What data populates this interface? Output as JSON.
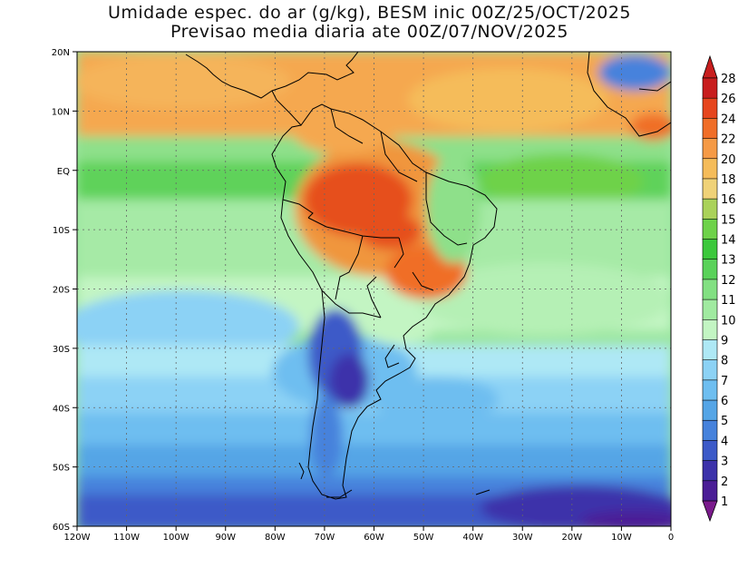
{
  "title": {
    "line1": "Umidade espec. do ar (g/kg), BESM inic 00Z/25/OCT/2025",
    "line2": "Previsao media diaria ate 00Z/07/NOV/2025"
  },
  "axes": {
    "lat_labels": [
      "20N",
      "10N",
      "EQ",
      "10S",
      "20S",
      "30S",
      "40S",
      "50S",
      "60S"
    ],
    "lon_labels": [
      "120W",
      "110W",
      "100W",
      "90W",
      "80W",
      "70W",
      "60W",
      "50W",
      "40W",
      "30W",
      "20W",
      "10W",
      "0"
    ]
  },
  "colorbar": {
    "labels": [
      "28",
      "26",
      "24",
      "22",
      "20",
      "18",
      "16",
      "15",
      "14",
      "13",
      "12",
      "11",
      "10",
      "9",
      "8",
      "7",
      "6",
      "5",
      "4",
      "3",
      "2",
      "1"
    ],
    "colors": [
      "#c81e1e",
      "#e6461e",
      "#f06e28",
      "#f59a46",
      "#f5bc5a",
      "#f0d278",
      "#aad25a",
      "#6ed24a",
      "#3cc83c",
      "#5ad25a",
      "#82e082",
      "#a0eaa0",
      "#c3f5c3",
      "#aee8f5",
      "#8cd2f5",
      "#6ebef0",
      "#55a5e6",
      "#4682dc",
      "#3c5ac8",
      "#3c32aa",
      "#4b1e96"
    ]
  }
}
